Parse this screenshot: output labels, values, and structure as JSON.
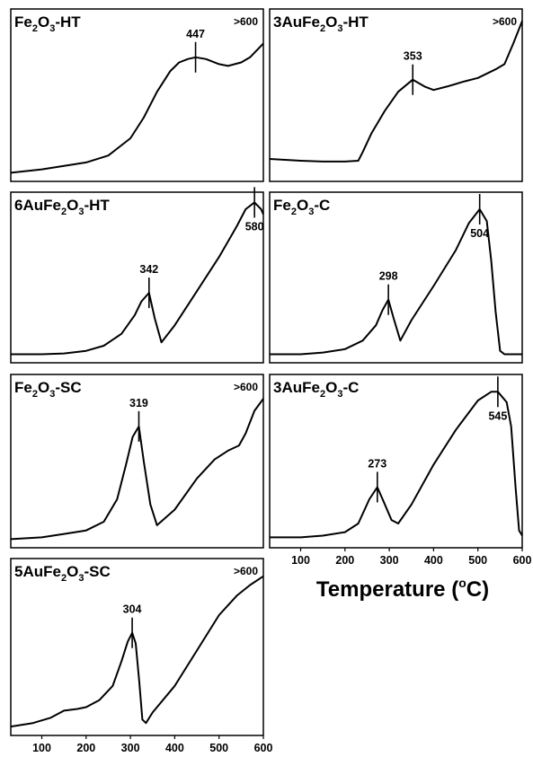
{
  "xlabel": {
    "pre": "Temperature (",
    "sup": "o",
    "post": "C)"
  },
  "xticks": [
    "100",
    "200",
    "300",
    "400",
    "500",
    "600"
  ],
  "chart_data": [
    {
      "type": "line",
      "title": {
        "a": "Fe",
        "s1": "2",
        "b": "O",
        "s2": "3",
        "c": "-HT"
      },
      "corner_label": ">600",
      "peaks": [
        {
          "x": 447,
          "label": "447"
        }
      ],
      "xlim": [
        30,
        600
      ],
      "x": [
        30,
        100,
        150,
        200,
        250,
        300,
        330,
        360,
        390,
        410,
        430,
        447,
        470,
        500,
        520,
        550,
        570,
        600
      ],
      "y": [
        0.05,
        0.07,
        0.09,
        0.11,
        0.15,
        0.25,
        0.37,
        0.52,
        0.64,
        0.69,
        0.71,
        0.72,
        0.71,
        0.68,
        0.67,
        0.69,
        0.72,
        0.8
      ]
    },
    {
      "type": "line",
      "title": {
        "a": "3AuFe",
        "s1": "2",
        "b": "O",
        "s2": "3",
        "c": "-HT"
      },
      "corner_label": ">600",
      "peaks": [
        {
          "x": 353,
          "label": "353"
        }
      ],
      "xlim": [
        30,
        600
      ],
      "x": [
        30,
        100,
        150,
        200,
        230,
        240,
        260,
        290,
        320,
        353,
        380,
        400,
        430,
        470,
        500,
        540,
        560,
        580,
        600
      ],
      "y": [
        0.13,
        0.12,
        0.115,
        0.115,
        0.12,
        0.17,
        0.28,
        0.41,
        0.52,
        0.59,
        0.55,
        0.53,
        0.55,
        0.58,
        0.6,
        0.65,
        0.68,
        0.8,
        0.93
      ]
    },
    {
      "type": "line",
      "title": {
        "a": "6AuFe",
        "s1": "2",
        "b": "O",
        "s2": "3",
        "c": "-HT"
      },
      "corner_label": "",
      "peaks": [
        {
          "x": 342,
          "label": "342"
        },
        {
          "x": 580,
          "label": "580"
        }
      ],
      "xlim": [
        30,
        600
      ],
      "x": [
        30,
        100,
        150,
        200,
        240,
        280,
        310,
        325,
        342,
        355,
        370,
        400,
        450,
        500,
        540,
        560,
        580,
        595,
        600
      ],
      "y": [
        0.05,
        0.05,
        0.055,
        0.07,
        0.1,
        0.17,
        0.28,
        0.36,
        0.41,
        0.26,
        0.12,
        0.22,
        0.42,
        0.62,
        0.8,
        0.9,
        0.94,
        0.9,
        0.87
      ]
    },
    {
      "type": "line",
      "title": {
        "a": "Fe",
        "s1": "2",
        "b": "O",
        "s2": "3",
        "c": "-C"
      },
      "corner_label": "",
      "peaks": [
        {
          "x": 298,
          "label": "298"
        },
        {
          "x": 504,
          "label": "504"
        }
      ],
      "xlim": [
        30,
        600
      ],
      "x": [
        30,
        100,
        150,
        200,
        240,
        270,
        285,
        298,
        310,
        325,
        350,
        400,
        450,
        480,
        504,
        520,
        530,
        540,
        550,
        560,
        600
      ],
      "y": [
        0.05,
        0.05,
        0.06,
        0.08,
        0.13,
        0.22,
        0.31,
        0.37,
        0.26,
        0.13,
        0.25,
        0.45,
        0.66,
        0.82,
        0.9,
        0.83,
        0.6,
        0.3,
        0.07,
        0.05,
        0.05
      ]
    },
    {
      "type": "line",
      "title": {
        "a": "Fe",
        "s1": "2",
        "b": "O",
        "s2": "3",
        "c": "-SC"
      },
      "corner_label": ">600",
      "peaks": [
        {
          "x": 319,
          "label": "319"
        }
      ],
      "xlim": [
        30,
        600
      ],
      "x": [
        30,
        100,
        150,
        200,
        240,
        270,
        290,
        305,
        319,
        330,
        345,
        360,
        400,
        450,
        490,
        520,
        545,
        560,
        580,
        600
      ],
      "y": [
        0.05,
        0.06,
        0.08,
        0.1,
        0.15,
        0.28,
        0.48,
        0.64,
        0.7,
        0.5,
        0.25,
        0.13,
        0.22,
        0.4,
        0.51,
        0.56,
        0.59,
        0.66,
        0.79,
        0.86
      ]
    },
    {
      "type": "line",
      "title": {
        "a": "3AuFe",
        "s1": "2",
        "b": "O",
        "s2": "3",
        "c": "-C"
      },
      "corner_label": "",
      "peaks": [
        {
          "x": 273,
          "label": "273"
        },
        {
          "x": 545,
          "label": "545"
        }
      ],
      "xlim": [
        30,
        600
      ],
      "x": [
        30,
        100,
        150,
        200,
        230,
        255,
        273,
        290,
        305,
        320,
        350,
        400,
        450,
        500,
        530,
        545,
        565,
        575,
        585,
        593,
        600
      ],
      "y": [
        0.06,
        0.06,
        0.07,
        0.09,
        0.14,
        0.28,
        0.35,
        0.25,
        0.16,
        0.14,
        0.25,
        0.48,
        0.68,
        0.85,
        0.9,
        0.9,
        0.84,
        0.7,
        0.35,
        0.1,
        0.07
      ]
    },
    {
      "type": "line",
      "title": {
        "a": "5AuFe",
        "s1": "2",
        "b": "O",
        "s2": "3",
        "c": "-SC"
      },
      "corner_label": ">600",
      "peaks": [
        {
          "x": 304,
          "label": "304"
        }
      ],
      "xlim": [
        30,
        600
      ],
      "x": [
        30,
        80,
        120,
        150,
        180,
        200,
        230,
        260,
        280,
        294,
        304,
        312,
        320,
        327,
        335,
        350,
        400,
        450,
        500,
        540,
        570,
        600
      ],
      "y": [
        0.05,
        0.07,
        0.1,
        0.14,
        0.15,
        0.16,
        0.2,
        0.28,
        0.42,
        0.53,
        0.58,
        0.52,
        0.3,
        0.09,
        0.07,
        0.13,
        0.28,
        0.48,
        0.68,
        0.79,
        0.85,
        0.9
      ]
    }
  ]
}
